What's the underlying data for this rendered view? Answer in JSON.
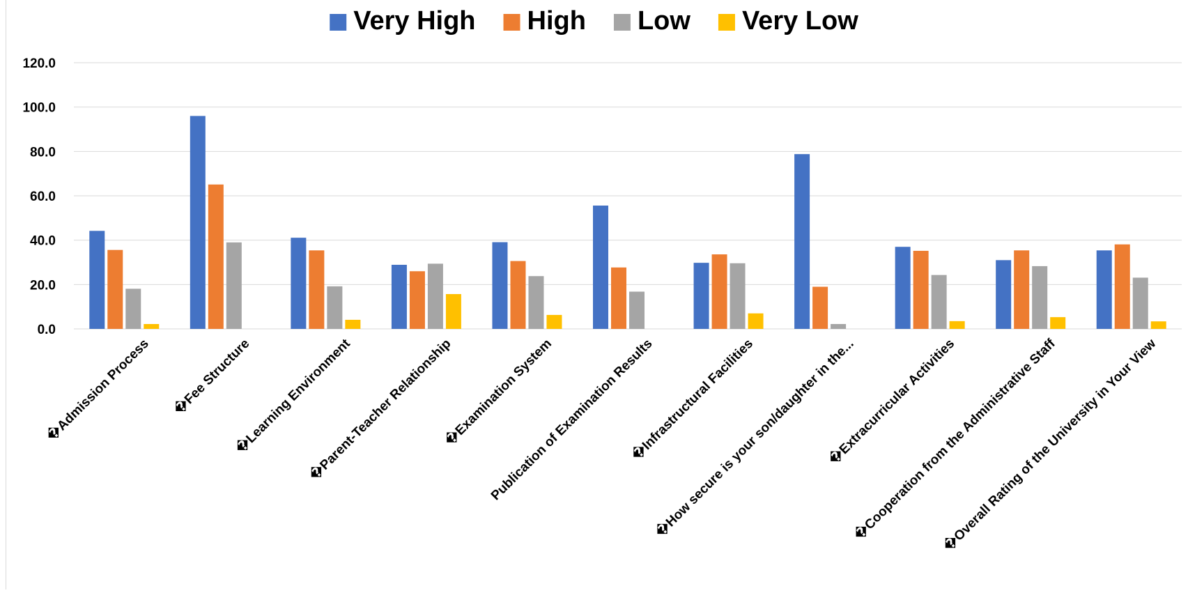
{
  "chart_data": {
    "type": "bar",
    "title": "",
    "xlabel": "",
    "ylabel": "",
    "ylim": [
      0,
      120
    ],
    "yticks": [
      0,
      20,
      40,
      60,
      80,
      100,
      120
    ],
    "ytick_labels": [
      "0.0",
      "20.0",
      "40.0",
      "60.0",
      "80.0",
      "100.0",
      "120.0"
    ],
    "grid": "horizontal",
    "legend_position": "top-center",
    "categories": [
      "�Admission Process",
      "�Fee Structure",
      "�Learning Environment",
      "�Parent-Teacher Relationship",
      "�Examination System",
      "Publication of Examination Results",
      "�Infrastructural Facilities",
      "�How secure is your son/daughter in the...",
      "�Extracurricular Activities",
      "�Cooperation from the Administrative Staff",
      "�Overall Rating of the University in Your View"
    ],
    "series": [
      {
        "name": "Very High",
        "color": "#4472C4",
        "values": [
          44.2,
          96.0,
          41.1,
          28.9,
          39.1,
          55.6,
          29.8,
          78.8,
          37.0,
          31.0,
          35.4
        ]
      },
      {
        "name": "High",
        "color": "#ED7D31",
        "values": [
          35.6,
          65.1,
          35.4,
          26.0,
          30.6,
          27.7,
          33.6,
          19.0,
          35.2,
          35.4,
          38.1
        ]
      },
      {
        "name": "Low",
        "color": "#A5A5A5",
        "values": [
          18.1,
          39.0,
          19.2,
          29.4,
          23.8,
          16.8,
          29.6,
          2.2,
          24.3,
          28.3,
          23.1
        ]
      },
      {
        "name": "Very Low",
        "color": "#FFC000",
        "values": [
          2.2,
          0.0,
          4.1,
          15.7,
          6.3,
          0.0,
          7.0,
          0.0,
          3.5,
          5.3,
          3.4
        ]
      }
    ]
  }
}
